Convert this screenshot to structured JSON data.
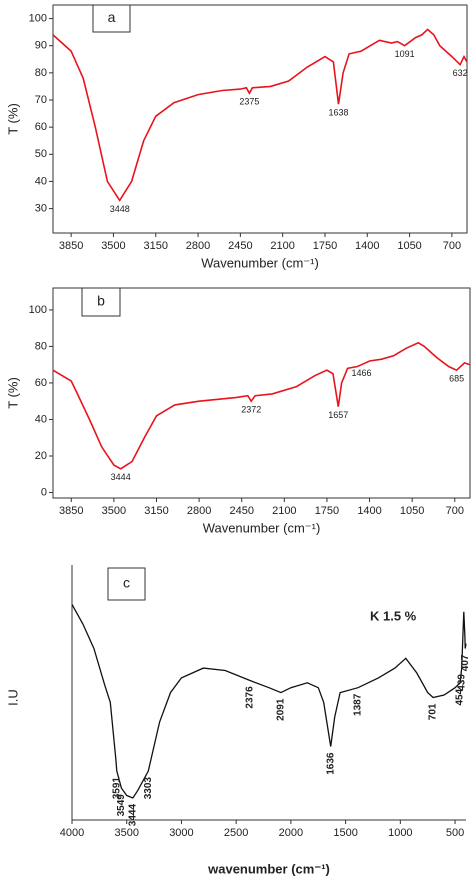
{
  "chart_data": [
    {
      "type": "line",
      "title": "a",
      "xlabel": "Wavenumber (cm⁻¹)",
      "ylabel": "T (%)",
      "xlim": [
        4000,
        575
      ],
      "xticks": [
        3850,
        3500,
        3150,
        2800,
        2450,
        2100,
        1750,
        1400,
        1050,
        700
      ],
      "ylim": [
        21,
        105
      ],
      "yticks": [
        30,
        40,
        50,
        60,
        70,
        80,
        90,
        100
      ],
      "color": "#e8141c",
      "x": [
        4000,
        3850,
        3750,
        3650,
        3550,
        3448,
        3350,
        3250,
        3150,
        3000,
        2800,
        2600,
        2450,
        2400,
        2375,
        2350,
        2200,
        2050,
        1900,
        1750,
        1680,
        1638,
        1600,
        1550,
        1450,
        1300,
        1200,
        1150,
        1091,
        1000,
        950,
        900,
        850,
        800,
        700,
        632,
        600,
        575
      ],
      "values": [
        94,
        88,
        78,
        60,
        40,
        33,
        40,
        55,
        64,
        69,
        72,
        73.5,
        74,
        74.5,
        72.5,
        74.5,
        75,
        77,
        82,
        86,
        84,
        68.5,
        80,
        87,
        88,
        92,
        91,
        91.5,
        90,
        93,
        94,
        96,
        94,
        90,
        86,
        83,
        86,
        84
      ],
      "peak_labels": [
        3448,
        2375,
        1638,
        1091,
        632
      ]
    },
    {
      "type": "line",
      "title": "b",
      "xlabel": "Wavenumber (cm⁻¹)",
      "ylabel": "T (%)",
      "xlim": [
        4000,
        575
      ],
      "xticks": [
        3850,
        3500,
        3150,
        2800,
        2450,
        2100,
        1750,
        1400,
        1050,
        700
      ],
      "ylim": [
        -3,
        112
      ],
      "yticks": [
        0,
        20,
        40,
        60,
        80,
        100
      ],
      "color": "#e8141c",
      "x": [
        4000,
        3850,
        3800,
        3700,
        3600,
        3500,
        3444,
        3350,
        3250,
        3150,
        3000,
        2800,
        2500,
        2400,
        2372,
        2340,
        2200,
        2000,
        1850,
        1750,
        1700,
        1657,
        1630,
        1580,
        1500,
        1466,
        1400,
        1300,
        1200,
        1100,
        1000,
        950,
        850,
        750,
        685,
        620,
        575
      ],
      "values": [
        67,
        61,
        54,
        40,
        25,
        15,
        13,
        17,
        30,
        42,
        48,
        50,
        52,
        53,
        50,
        53,
        54,
        58,
        64,
        67,
        65,
        47,
        60,
        68,
        69,
        70,
        72,
        73,
        75,
        79,
        82,
        80,
        74,
        69,
        67,
        71,
        70
      ],
      "peak_labels": [
        3444,
        2372,
        1657,
        1466,
        685
      ]
    },
    {
      "type": "line",
      "title": "c",
      "xlabel": "wavenumber (cm⁻¹)",
      "ylabel": "I.U",
      "annotation": "K 1.5 %",
      "xlim": [
        4000,
        400
      ],
      "xticks": [
        4000,
        3500,
        3000,
        2500,
        2000,
        1500,
        1000,
        500
      ],
      "ylim": [
        0,
        100
      ],
      "color": "#111111",
      "x": [
        4000,
        3900,
        3800,
        3700,
        3650,
        3600,
        3591,
        3549,
        3500,
        3444,
        3400,
        3303,
        3200,
        3100,
        3000,
        2800,
        2600,
        2376,
        2200,
        2091,
        2000,
        1850,
        1750,
        1700,
        1636,
        1600,
        1550,
        1387,
        1200,
        1050,
        950,
        850,
        750,
        701,
        600,
        500,
        454,
        439,
        420,
        410,
        407,
        400
      ],
      "values": [
        88,
        80,
        70,
        55,
        48,
        25,
        20,
        13,
        10,
        9,
        12,
        20,
        40,
        52,
        58,
        62,
        61,
        57,
        54,
        52,
        54,
        56,
        54,
        48,
        30,
        42,
        52,
        54,
        58,
        62,
        66,
        60,
        52,
        50,
        51,
        54,
        56,
        62,
        85,
        75,
        70,
        72
      ],
      "peak_labels": [
        3591,
        3549,
        3444,
        3303,
        2376,
        2091,
        1636,
        1387,
        701,
        454,
        439,
        407
      ]
    }
  ]
}
